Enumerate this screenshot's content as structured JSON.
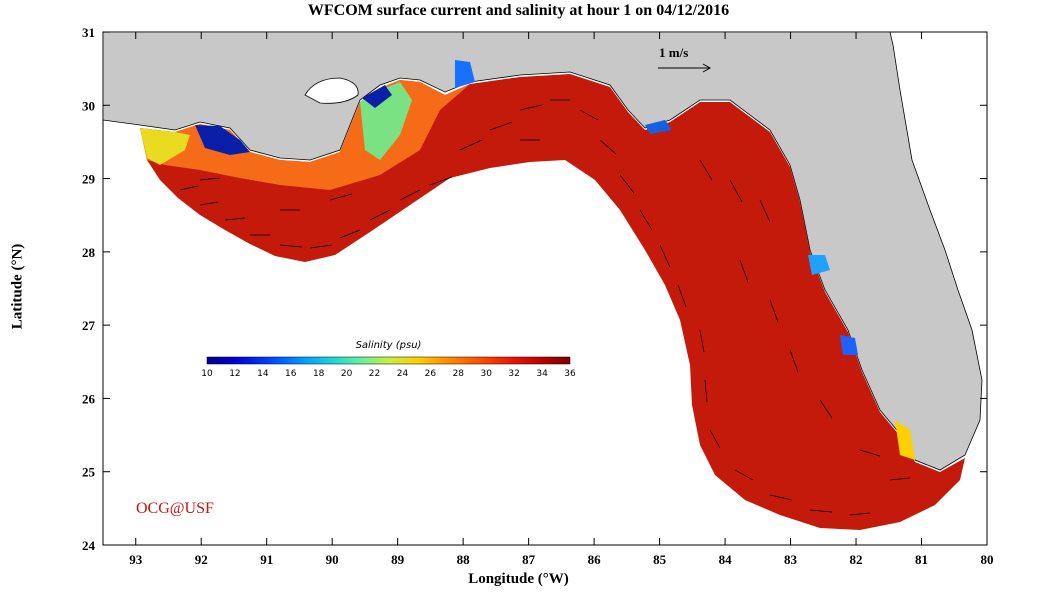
{
  "title": "WFCOM surface current and salinity at hour 1 on 04/12/2016",
  "x_axis": {
    "label": "Longitude (°W)",
    "ticks": [
      "93",
      "92",
      "91",
      "90",
      "89",
      "88",
      "87",
      "86",
      "85",
      "84",
      "83",
      "82",
      "81",
      "80"
    ],
    "range": [
      93.5,
      80
    ]
  },
  "y_axis": {
    "label": "Latitude (°N)",
    "ticks": [
      "31",
      "30",
      "29",
      "28",
      "27",
      "26",
      "25",
      "24"
    ],
    "range": [
      24,
      31
    ]
  },
  "colorbar": {
    "title": "Salinity (psu)",
    "ticks": [
      "10",
      "12",
      "14",
      "16",
      "18",
      "20",
      "22",
      "24",
      "26",
      "28",
      "30",
      "32",
      "34",
      "36"
    ],
    "colors": [
      "#00008f",
      "#0000c8",
      "#0020f0",
      "#0050ff",
      "#0080ff",
      "#00b0ff",
      "#20d8e0",
      "#60f0a0",
      "#a0f060",
      "#e0e820",
      "#ffc000",
      "#ff8000",
      "#ff4000",
      "#e01000",
      "#c00000",
      "#8f0000"
    ]
  },
  "scale_vector": {
    "label": "1 m/s"
  },
  "credit": "OCG@USF",
  "colors": {
    "land": "#c8c8c8",
    "ocean_base": "#c41a0c",
    "coastal_low": "#ff8c1a",
    "fresh": "#0a1fa8",
    "credit": "#cc1111"
  }
}
